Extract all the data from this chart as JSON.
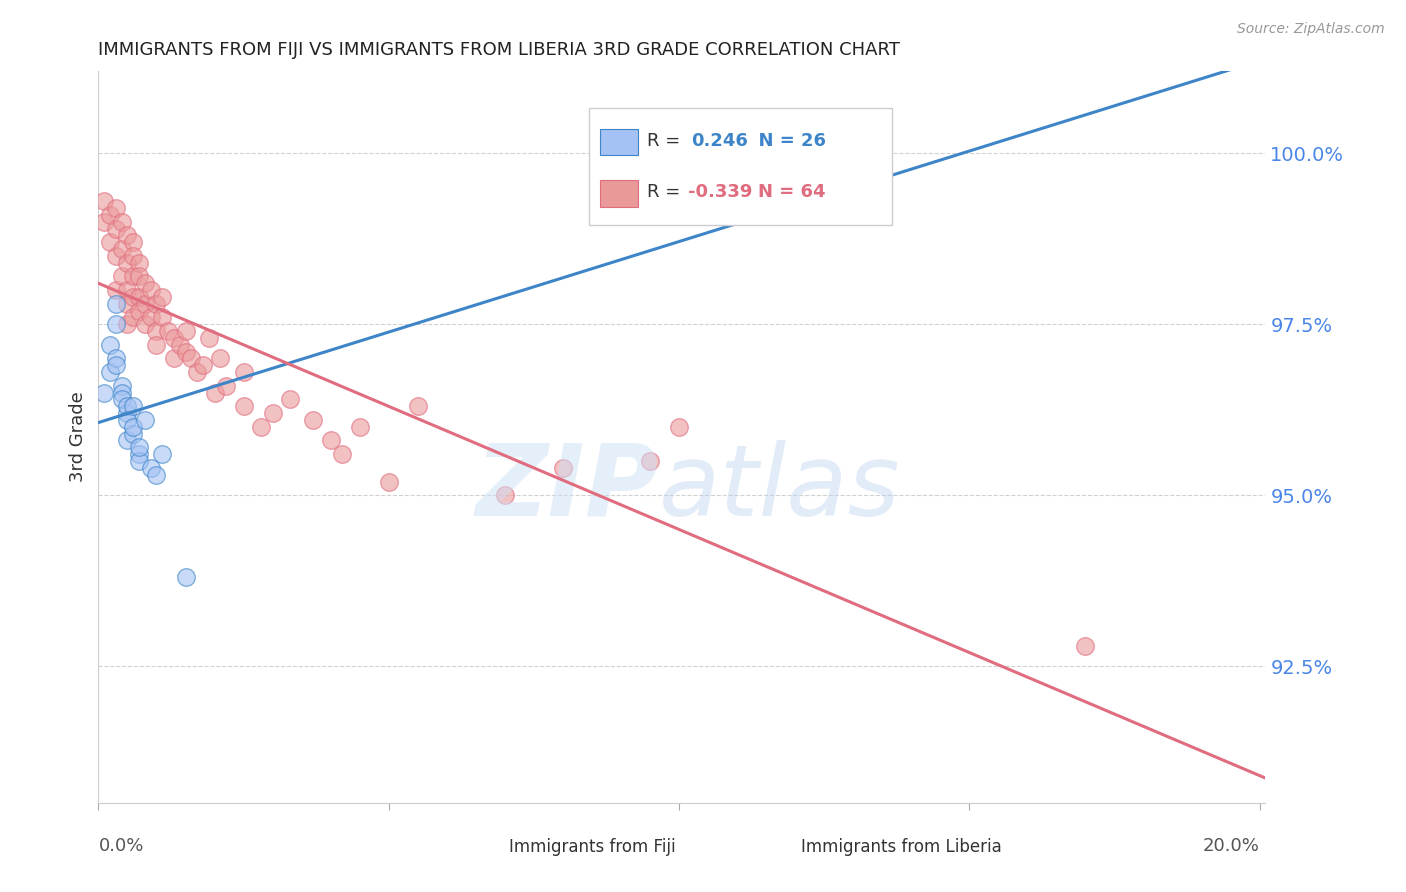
{
  "title": "IMMIGRANTS FROM FIJI VS IMMIGRANTS FROM LIBERIA 3RD GRADE CORRELATION CHART",
  "source": "Source: ZipAtlas.com",
  "ylabel": "3rd Grade",
  "ylim": [
    90.5,
    101.2
  ],
  "xlim": [
    0.0,
    0.201
  ],
  "ytick_positions": [
    92.5,
    95.0,
    97.5,
    100.0
  ],
  "ytick_labels": [
    "92.5%",
    "95.0%",
    "97.5%",
    "100.0%"
  ],
  "legend_fiji_r_val": "0.246",
  "legend_fiji_n": "N = 26",
  "legend_liberia_r_val": "-0.339",
  "legend_liberia_n": "N = 64",
  "fiji_color": "#a4c2f4",
  "liberia_color": "#ea9999",
  "fiji_line_color": "#3d85c8",
  "liberia_line_color": "#e06c7f",
  "fiji_scatter_x": [
    0.001,
    0.002,
    0.002,
    0.003,
    0.003,
    0.003,
    0.003,
    0.004,
    0.004,
    0.004,
    0.005,
    0.005,
    0.005,
    0.005,
    0.006,
    0.006,
    0.006,
    0.007,
    0.007,
    0.007,
    0.008,
    0.009,
    0.01,
    0.011,
    0.015,
    0.13
  ],
  "fiji_scatter_y": [
    96.5,
    96.8,
    97.2,
    97.5,
    97.0,
    96.9,
    97.8,
    96.6,
    96.5,
    96.4,
    96.2,
    96.3,
    96.1,
    95.8,
    95.9,
    96.0,
    96.3,
    95.6,
    95.5,
    95.7,
    96.1,
    95.4,
    95.3,
    95.6,
    93.8,
    100.0
  ],
  "liberia_scatter_x": [
    0.001,
    0.001,
    0.002,
    0.002,
    0.003,
    0.003,
    0.003,
    0.003,
    0.004,
    0.004,
    0.004,
    0.005,
    0.005,
    0.005,
    0.005,
    0.005,
    0.006,
    0.006,
    0.006,
    0.006,
    0.006,
    0.007,
    0.007,
    0.007,
    0.007,
    0.008,
    0.008,
    0.008,
    0.009,
    0.009,
    0.01,
    0.01,
    0.01,
    0.011,
    0.011,
    0.012,
    0.013,
    0.013,
    0.014,
    0.015,
    0.015,
    0.016,
    0.017,
    0.018,
    0.019,
    0.02,
    0.021,
    0.022,
    0.025,
    0.025,
    0.028,
    0.03,
    0.033,
    0.037,
    0.04,
    0.042,
    0.045,
    0.05,
    0.055,
    0.07,
    0.08,
    0.095,
    0.1,
    0.17
  ],
  "liberia_scatter_y": [
    99.3,
    99.0,
    99.1,
    98.7,
    99.2,
    98.9,
    98.5,
    98.0,
    99.0,
    98.6,
    98.2,
    98.8,
    98.4,
    98.0,
    97.8,
    97.5,
    98.7,
    98.5,
    98.2,
    97.9,
    97.6,
    98.4,
    98.2,
    97.9,
    97.7,
    98.1,
    97.8,
    97.5,
    98.0,
    97.6,
    97.8,
    97.4,
    97.2,
    97.9,
    97.6,
    97.4,
    97.0,
    97.3,
    97.2,
    97.4,
    97.1,
    97.0,
    96.8,
    96.9,
    97.3,
    96.5,
    97.0,
    96.6,
    96.3,
    96.8,
    96.0,
    96.2,
    96.4,
    96.1,
    95.8,
    95.6,
    96.0,
    95.2,
    96.3,
    95.0,
    95.4,
    95.5,
    96.0,
    92.8
  ]
}
